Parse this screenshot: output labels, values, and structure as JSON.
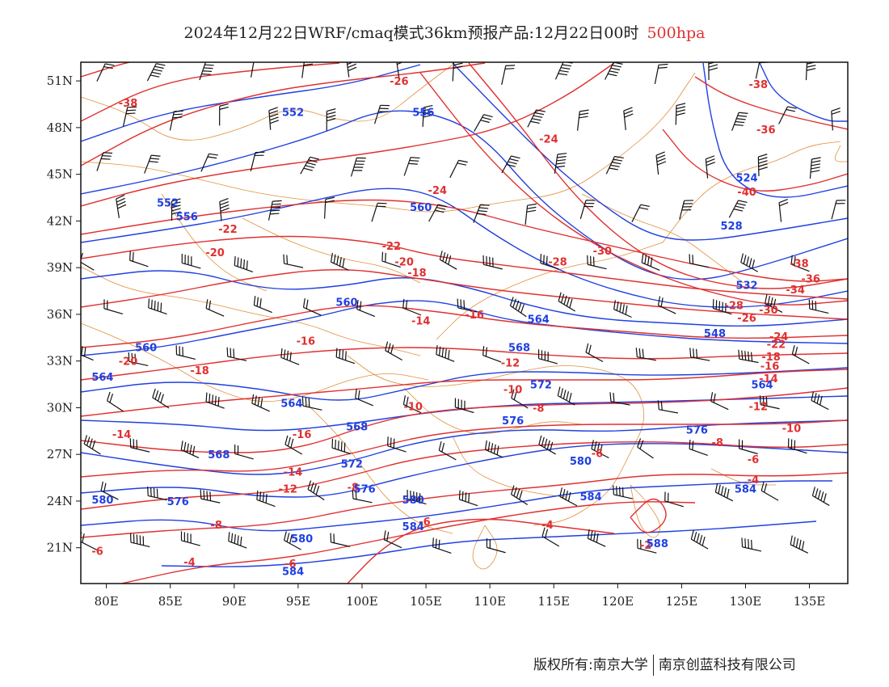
{
  "title": {
    "main": "2024年12月22日WRF/cmaq模式36km预报产品:12月22日00时",
    "level": "500hpa"
  },
  "footer": {
    "copyright": "版权所有:南京大学",
    "company": "南京创蓝科技有限公司"
  },
  "colors": {
    "temperature_contours": "#e03030",
    "height_contours": "#2040e0",
    "boundaries": "#e0903a",
    "wind_barbs": "#111111"
  },
  "axes": {
    "x_ticks": [
      "80E",
      "85E",
      "90E",
      "95E",
      "100E",
      "105E",
      "110E",
      "115E",
      "120E",
      "125E",
      "130E",
      "135E"
    ],
    "x_values": [
      80,
      85,
      90,
      95,
      100,
      105,
      110,
      115,
      120,
      125,
      130,
      135
    ],
    "y_ticks": [
      "51N",
      "48N",
      "45N",
      "42N",
      "39N",
      "36N",
      "33N",
      "30N",
      "27N",
      "24N",
      "21N"
    ],
    "y_values": [
      51,
      48,
      45,
      42,
      39,
      36,
      33,
      30,
      27,
      24,
      21
    ],
    "lon_range": [
      78,
      138
    ],
    "lat_range": [
      18.7,
      52.2
    ]
  },
  "temperature_labels": [
    {
      "text": "-38",
      "lon": 81.7,
      "lat": 49.6
    },
    {
      "text": "-26",
      "lon": 102.9,
      "lat": 51.0
    },
    {
      "text": "-24",
      "lon": 114.6,
      "lat": 47.3
    },
    {
      "text": "-38",
      "lon": 131.0,
      "lat": 50.8
    },
    {
      "text": "-36",
      "lon": 131.6,
      "lat": 47.9
    },
    {
      "text": "-40",
      "lon": 130.1,
      "lat": 43.9
    },
    {
      "text": "-24",
      "lon": 105.9,
      "lat": 44.0
    },
    {
      "text": "-22",
      "lon": 89.5,
      "lat": 41.5
    },
    {
      "text": "-20",
      "lon": 88.5,
      "lat": 40.0
    },
    {
      "text": "-22",
      "lon": 102.3,
      "lat": 40.4
    },
    {
      "text": "-20",
      "lon": 103.3,
      "lat": 39.4
    },
    {
      "text": "-18",
      "lon": 104.3,
      "lat": 38.7
    },
    {
      "text": "-28",
      "lon": 115.3,
      "lat": 39.4
    },
    {
      "text": "-30",
      "lon": 118.8,
      "lat": 40.1
    },
    {
      "text": "-38",
      "lon": 134.2,
      "lat": 39.3
    },
    {
      "text": "-36",
      "lon": 135.1,
      "lat": 38.3
    },
    {
      "text": "-34",
      "lon": 133.9,
      "lat": 37.6
    },
    {
      "text": "-14",
      "lon": 104.6,
      "lat": 35.6
    },
    {
      "text": "-16",
      "lon": 108.8,
      "lat": 36.0
    },
    {
      "text": "-16",
      "lon": 95.6,
      "lat": 34.3
    },
    {
      "text": "-20",
      "lon": 81.7,
      "lat": 33.0
    },
    {
      "text": "-18",
      "lon": 87.3,
      "lat": 32.4
    },
    {
      "text": "-12",
      "lon": 111.6,
      "lat": 32.9
    },
    {
      "text": "-10",
      "lon": 111.8,
      "lat": 31.2
    },
    {
      "text": "-10",
      "lon": 104.0,
      "lat": 30.1
    },
    {
      "text": "-8",
      "lon": 113.8,
      "lat": 30.0
    },
    {
      "text": "-14",
      "lon": 81.2,
      "lat": 28.3
    },
    {
      "text": "-16",
      "lon": 95.3,
      "lat": 28.3
    },
    {
      "text": "-14",
      "lon": 94.6,
      "lat": 25.9
    },
    {
      "text": "-12",
      "lon": 94.2,
      "lat": 24.8
    },
    {
      "text": "-8",
      "lon": 99.3,
      "lat": 24.9
    },
    {
      "text": "-6",
      "lon": 118.4,
      "lat": 27.1
    },
    {
      "text": "-6",
      "lon": 104.9,
      "lat": 22.7
    },
    {
      "text": "-8",
      "lon": 88.6,
      "lat": 22.5
    },
    {
      "text": "-6",
      "lon": 79.3,
      "lat": 20.8
    },
    {
      "text": "-4",
      "lon": 86.5,
      "lat": 20.1
    },
    {
      "text": "-6",
      "lon": 94.4,
      "lat": 20.0
    },
    {
      "text": "-4",
      "lon": 114.5,
      "lat": 22.5
    },
    {
      "text": "-26",
      "lon": 130.1,
      "lat": 35.8
    },
    {
      "text": "-30",
      "lon": 131.8,
      "lat": 36.3
    },
    {
      "text": "-28",
      "lon": 129.1,
      "lat": 36.6
    },
    {
      "text": "-24",
      "lon": 132.6,
      "lat": 34.6
    },
    {
      "text": "-22",
      "lon": 132.4,
      "lat": 34.1
    },
    {
      "text": "-18",
      "lon": 132.0,
      "lat": 33.3
    },
    {
      "text": "-16",
      "lon": 131.9,
      "lat": 32.7
    },
    {
      "text": "-14",
      "lon": 131.8,
      "lat": 31.9
    },
    {
      "text": "-12",
      "lon": 131.0,
      "lat": 30.1
    },
    {
      "text": "-10",
      "lon": 133.6,
      "lat": 28.7
    },
    {
      "text": "-8",
      "lon": 127.8,
      "lat": 27.8
    },
    {
      "text": "-6",
      "lon": 130.6,
      "lat": 26.7
    },
    {
      "text": "-4",
      "lon": 130.6,
      "lat": 25.4
    },
    {
      "text": "-2",
      "lon": 122.2,
      "lat": 21.2
    }
  ],
  "height_labels": [
    {
      "text": "552",
      "lon": 94.6,
      "lat": 49.0
    },
    {
      "text": "556",
      "lon": 104.8,
      "lat": 49.0
    },
    {
      "text": "552",
      "lon": 84.8,
      "lat": 43.2
    },
    {
      "text": "556",
      "lon": 86.3,
      "lat": 42.3
    },
    {
      "text": "560",
      "lon": 104.6,
      "lat": 42.9
    },
    {
      "text": "524",
      "lon": 130.1,
      "lat": 44.8
    },
    {
      "text": "528",
      "lon": 128.9,
      "lat": 41.7
    },
    {
      "text": "532",
      "lon": 130.1,
      "lat": 37.9
    },
    {
      "text": "560",
      "lon": 98.8,
      "lat": 36.8
    },
    {
      "text": "564",
      "lon": 113.8,
      "lat": 35.7
    },
    {
      "text": "568",
      "lon": 112.3,
      "lat": 33.9
    },
    {
      "text": "548",
      "lon": 127.6,
      "lat": 34.8
    },
    {
      "text": "560",
      "lon": 83.1,
      "lat": 33.9
    },
    {
      "text": "564",
      "lon": 79.7,
      "lat": 32.0
    },
    {
      "text": "564",
      "lon": 94.5,
      "lat": 30.3
    },
    {
      "text": "568",
      "lon": 99.6,
      "lat": 28.8
    },
    {
      "text": "572",
      "lon": 114.0,
      "lat": 31.5
    },
    {
      "text": "576",
      "lon": 111.8,
      "lat": 29.2
    },
    {
      "text": "576",
      "lon": 126.2,
      "lat": 28.6
    },
    {
      "text": "564",
      "lon": 131.3,
      "lat": 31.5
    },
    {
      "text": "568",
      "lon": 88.8,
      "lat": 27.0
    },
    {
      "text": "572",
      "lon": 99.2,
      "lat": 26.4
    },
    {
      "text": "580",
      "lon": 117.1,
      "lat": 26.6
    },
    {
      "text": "576",
      "lon": 85.6,
      "lat": 24.0
    },
    {
      "text": "576",
      "lon": 100.2,
      "lat": 24.8
    },
    {
      "text": "580",
      "lon": 79.7,
      "lat": 24.1
    },
    {
      "text": "580",
      "lon": 104.0,
      "lat": 24.1
    },
    {
      "text": "584",
      "lon": 117.9,
      "lat": 24.3
    },
    {
      "text": "584",
      "lon": 130.0,
      "lat": 24.8
    },
    {
      "text": "580",
      "lon": 95.3,
      "lat": 21.6
    },
    {
      "text": "584",
      "lon": 104.0,
      "lat": 22.4
    },
    {
      "text": "588",
      "lon": 123.1,
      "lat": 21.3
    },
    {
      "text": "584",
      "lon": 94.6,
      "lat": 19.5
    }
  ]
}
